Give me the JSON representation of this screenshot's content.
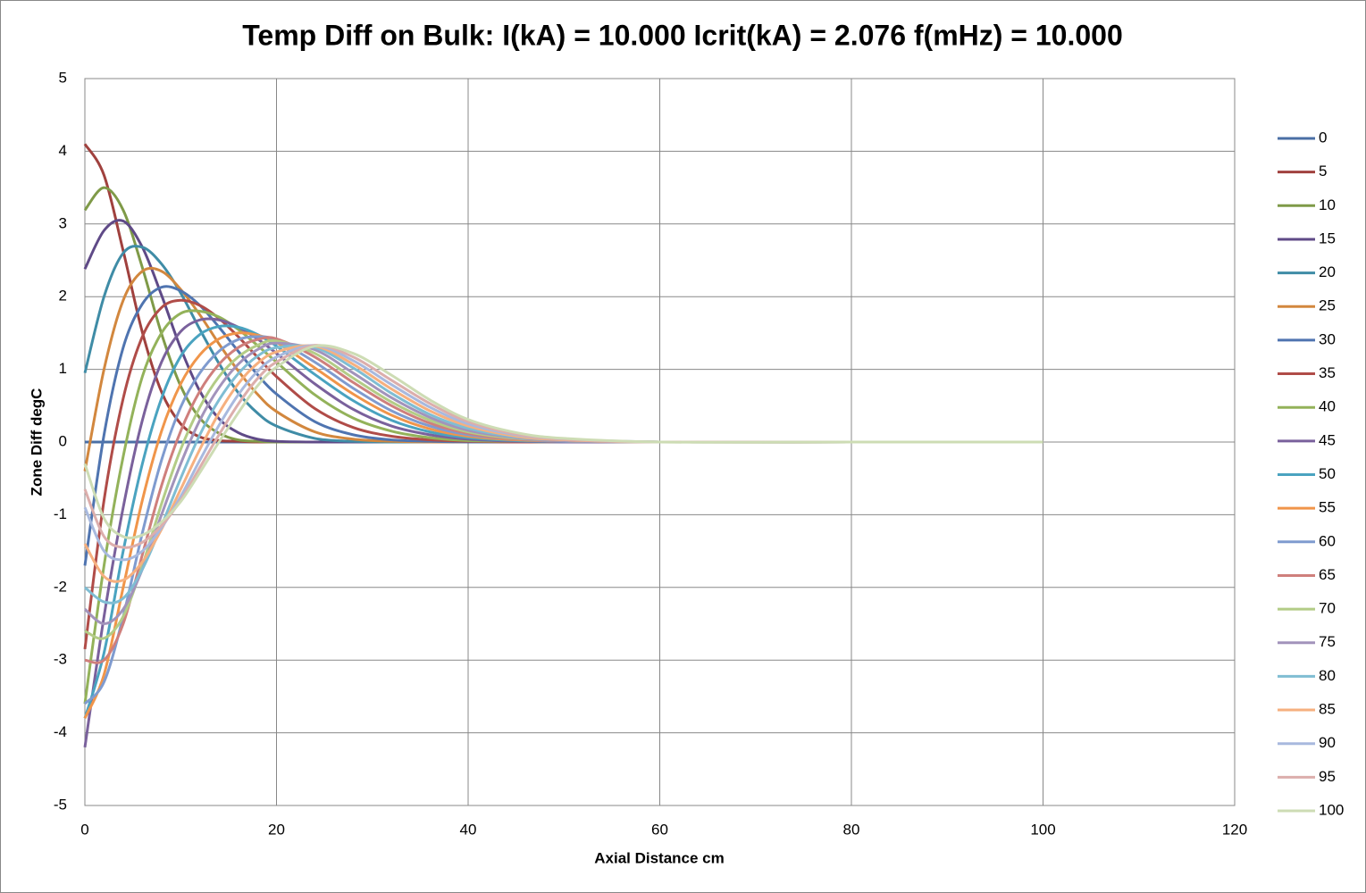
{
  "chart_data": {
    "type": "line",
    "title": "Temp Diff on Bulk:  I(kA) = 10.000 Icrit(kA) = 2.076 f(mHz) = 10.000",
    "x_label": "Axial Distance  cm",
    "y_label": "Zone Diff degC",
    "xlim": [
      0,
      120
    ],
    "xticks": [
      0,
      20,
      40,
      60,
      80,
      100,
      120
    ],
    "ylim": [
      -5,
      5
    ],
    "yticks": [
      -5,
      -4,
      -3,
      -2,
      -1,
      0,
      1,
      2,
      3,
      4,
      5
    ],
    "grid": true,
    "legend": "right",
    "x": [
      0,
      2,
      4,
      6,
      8,
      10,
      12,
      14,
      16,
      18,
      20,
      24,
      28,
      32,
      36,
      40,
      45,
      50,
      60,
      80,
      100
    ],
    "series": [
      {
        "name": "0",
        "color": "#4a6fa5",
        "values": [
          0,
          0,
          0,
          0,
          0,
          0,
          0,
          0,
          0,
          0,
          0,
          0,
          0,
          0,
          0,
          0,
          0,
          0,
          0,
          0,
          0
        ]
      },
      {
        "name": "5",
        "color": "#a0413e",
        "values": [
          4.1,
          3.67,
          2.63,
          1.51,
          0.69,
          0.25,
          0.07,
          0.02,
          0.01,
          0,
          0,
          0,
          0,
          0,
          0,
          0,
          0,
          0,
          0,
          0,
          0
        ]
      },
      {
        "name": "10",
        "color": "#7f9a48",
        "values": [
          3.19,
          3.5,
          3.19,
          2.4,
          1.49,
          0.77,
          0.33,
          0.12,
          0.03,
          0.01,
          0,
          0,
          0,
          0,
          0,
          0,
          0,
          0,
          0,
          0,
          0
        ]
      },
      {
        "name": "15",
        "color": "#5f4a87",
        "values": [
          2.38,
          2.91,
          3.04,
          2.68,
          2.02,
          1.29,
          0.7,
          0.32,
          0.13,
          0.04,
          0.01,
          0,
          0,
          0,
          0,
          0,
          0,
          0,
          0,
          0,
          0
        ]
      },
      {
        "name": "20",
        "color": "#3f8ca6",
        "values": [
          0.95,
          2.0,
          2.6,
          2.68,
          2.45,
          2.05,
          1.55,
          1.08,
          0.68,
          0.4,
          0.22,
          0.05,
          0.01,
          0,
          0,
          0,
          0,
          0,
          0,
          0,
          0
        ]
      },
      {
        "name": "25",
        "color": "#d2873e",
        "values": [
          -0.4,
          1.0,
          1.95,
          2.35,
          2.35,
          2.1,
          1.75,
          1.35,
          0.98,
          0.66,
          0.42,
          0.14,
          0.04,
          0.01,
          0,
          0,
          0,
          0,
          0,
          0,
          0
        ]
      },
      {
        "name": "30",
        "color": "#4f74b0",
        "values": [
          -1.7,
          0.1,
          1.3,
          1.9,
          2.13,
          2.08,
          1.88,
          1.58,
          1.25,
          0.93,
          0.66,
          0.28,
          0.1,
          0.03,
          0.01,
          0,
          0,
          0,
          0,
          0,
          0
        ]
      },
      {
        "name": "35",
        "color": "#b04c48",
        "values": [
          -2.85,
          -0.8,
          0.6,
          1.45,
          1.85,
          1.95,
          1.88,
          1.7,
          1.45,
          1.17,
          0.9,
          0.46,
          0.2,
          0.08,
          0.03,
          0.01,
          0,
          0,
          0,
          0,
          0
        ]
      },
      {
        "name": "40",
        "color": "#93b25a",
        "values": [
          -3.6,
          -1.7,
          -0.2,
          0.9,
          1.5,
          1.77,
          1.8,
          1.72,
          1.55,
          1.33,
          1.1,
          0.65,
          0.33,
          0.15,
          0.06,
          0.02,
          0.01,
          0,
          0,
          0,
          0
        ]
      },
      {
        "name": "45",
        "color": "#7a619c",
        "values": [
          -4.2,
          -2.4,
          -0.9,
          0.3,
          1.1,
          1.52,
          1.68,
          1.68,
          1.58,
          1.42,
          1.22,
          0.8,
          0.45,
          0.22,
          0.1,
          0.04,
          0.01,
          0,
          0,
          0,
          0
        ]
      },
      {
        "name": "50",
        "color": "#4aa3c0",
        "values": [
          -3.8,
          -2.9,
          -1.5,
          -0.3,
          0.6,
          1.18,
          1.48,
          1.59,
          1.58,
          1.48,
          1.32,
          0.93,
          0.57,
          0.3,
          0.14,
          0.06,
          0.02,
          0.01,
          0,
          0,
          0
        ]
      },
      {
        "name": "55",
        "color": "#f0954a",
        "values": [
          -3.8,
          -3.2,
          -2.0,
          -0.8,
          0.15,
          0.8,
          1.2,
          1.42,
          1.5,
          1.47,
          1.37,
          1.02,
          0.66,
          0.37,
          0.18,
          0.08,
          0.03,
          0.01,
          0,
          0,
          0
        ]
      },
      {
        "name": "60",
        "color": "#7f9bcf",
        "values": [
          -3.6,
          -3.3,
          -2.4,
          -1.25,
          -0.25,
          0.48,
          0.95,
          1.25,
          1.41,
          1.45,
          1.4,
          1.1,
          0.74,
          0.43,
          0.22,
          0.1,
          0.04,
          0.01,
          0,
          0,
          0
        ]
      },
      {
        "name": "65",
        "color": "#cf7f7c",
        "values": [
          -3.0,
          -3.0,
          -2.5,
          -1.55,
          -0.6,
          0.15,
          0.7,
          1.07,
          1.3,
          1.41,
          1.42,
          1.17,
          0.82,
          0.5,
          0.26,
          0.12,
          0.04,
          0.02,
          0,
          0,
          0
        ]
      },
      {
        "name": "70",
        "color": "#b3cc86",
        "values": [
          -2.6,
          -2.7,
          -2.4,
          -1.7,
          -0.85,
          -0.1,
          0.48,
          0.9,
          1.17,
          1.33,
          1.39,
          1.22,
          0.88,
          0.55,
          0.3,
          0.14,
          0.05,
          0.02,
          0,
          0,
          0
        ]
      },
      {
        "name": "75",
        "color": "#a293bb",
        "values": [
          -2.3,
          -2.5,
          -2.3,
          -1.75,
          -1.0,
          -0.3,
          0.3,
          0.75,
          1.07,
          1.27,
          1.36,
          1.27,
          0.95,
          0.61,
          0.34,
          0.16,
          0.06,
          0.02,
          0,
          0,
          0
        ]
      },
      {
        "name": "80",
        "color": "#7fbdd3",
        "values": [
          -2.0,
          -2.2,
          -2.15,
          -1.75,
          -1.15,
          -0.5,
          0.1,
          0.58,
          0.94,
          1.18,
          1.3,
          1.3,
          1.02,
          0.67,
          0.38,
          0.19,
          0.07,
          0.03,
          0,
          0,
          0
        ]
      },
      {
        "name": "85",
        "color": "#f6b07f",
        "values": [
          -1.4,
          -1.85,
          -1.9,
          -1.65,
          -1.2,
          -0.65,
          -0.1,
          0.4,
          0.8,
          1.08,
          1.24,
          1.32,
          1.07,
          0.73,
          0.43,
          0.22,
          0.08,
          0.03,
          0,
          0,
          0
        ]
      },
      {
        "name": "90",
        "color": "#a8b9de",
        "values": [
          -0.9,
          -1.5,
          -1.62,
          -1.5,
          -1.18,
          -0.75,
          -0.25,
          0.23,
          0.65,
          0.97,
          1.17,
          1.33,
          1.12,
          0.79,
          0.48,
          0.25,
          0.1,
          0.04,
          0,
          0,
          0
        ]
      },
      {
        "name": "95",
        "color": "#dcaeac",
        "values": [
          -0.65,
          -1.3,
          -1.45,
          -1.38,
          -1.15,
          -0.8,
          -0.35,
          0.1,
          0.52,
          0.87,
          1.1,
          1.33,
          1.17,
          0.85,
          0.53,
          0.28,
          0.11,
          0.04,
          0,
          0,
          0
        ]
      },
      {
        "name": "100",
        "color": "#cddcb4",
        "values": [
          -0.3,
          -1.05,
          -1.3,
          -1.28,
          -1.1,
          -0.82,
          -0.42,
          0,
          0.4,
          0.77,
          1.03,
          1.32,
          1.22,
          0.92,
          0.58,
          0.31,
          0.13,
          0.05,
          0,
          0,
          0
        ]
      }
    ]
  }
}
